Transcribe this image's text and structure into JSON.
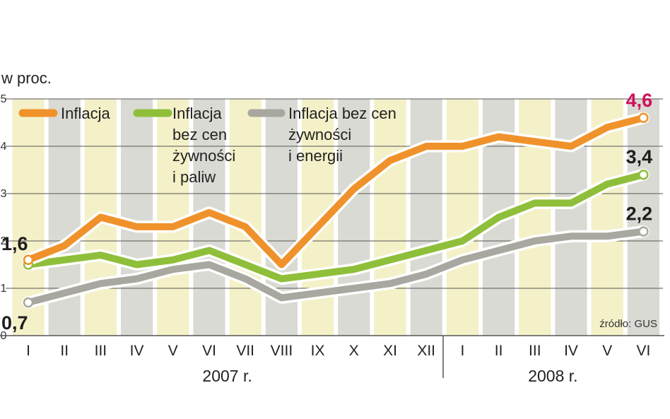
{
  "chart_data": {
    "type": "line",
    "ylabel": "w proc.",
    "ylim": [
      0,
      5
    ],
    "yticks": [
      "0",
      "1",
      "2",
      "3",
      "4",
      "5"
    ],
    "categories": [
      "I",
      "II",
      "III",
      "IV",
      "V",
      "VI",
      "VII",
      "VIII",
      "IX",
      "X",
      "XI",
      "XII",
      "I",
      "II",
      "III",
      "IV",
      "V",
      "VI"
    ],
    "year_groups": [
      {
        "label": "2007 r.",
        "start": 0,
        "end": 11
      },
      {
        "label": "2008 r.",
        "start": 12,
        "end": 17
      }
    ],
    "series": [
      {
        "name": "Inflacja",
        "color": "#f0922b",
        "values": [
          1.6,
          1.9,
          2.5,
          2.3,
          2.3,
          2.6,
          2.3,
          1.5,
          2.3,
          3.1,
          3.7,
          4.0,
          4.0,
          4.2,
          4.1,
          4.0,
          4.4,
          4.6
        ]
      },
      {
        "name": "Inflacja bez cen żywności i paliw",
        "color": "#8fbf3a",
        "values": [
          1.5,
          1.6,
          1.7,
          1.5,
          1.6,
          1.8,
          1.5,
          1.2,
          1.3,
          1.4,
          1.6,
          1.8,
          2.0,
          2.5,
          2.8,
          2.8,
          3.2,
          3.4
        ]
      },
      {
        "name": "Inflacja bez cen żywności i energii",
        "color": "#a8a8a0",
        "values": [
          0.7,
          0.9,
          1.1,
          1.2,
          1.4,
          1.5,
          1.2,
          0.8,
          0.9,
          1.0,
          1.1,
          1.3,
          1.6,
          1.8,
          2.0,
          2.1,
          2.1,
          2.2
        ]
      }
    ],
    "legend": [
      {
        "lines": [
          "Inflacja"
        ],
        "color": "#f0922b"
      },
      {
        "lines": [
          "Inflacja",
          "bez cen",
          "żywności",
          "i paliw"
        ],
        "color": "#8fbf3a"
      },
      {
        "lines": [
          "Inflacja bez cen",
          "żywności",
          "i energii"
        ],
        "color": "#a8a8a0"
      }
    ],
    "annotations": [
      {
        "text": "1,6",
        "series": 0,
        "index": 0
      },
      {
        "text": "0,7",
        "series": 2,
        "index": 0
      },
      {
        "text": "4,6",
        "series": 0,
        "index": 17,
        "color": "#d0115a"
      },
      {
        "text": "3,4",
        "series": 1,
        "index": 17
      },
      {
        "text": "2,2",
        "series": 2,
        "index": 17
      }
    ],
    "source": "źródło: GUS",
    "column_colors": [
      "#f4f0c8",
      "#dadad4"
    ]
  }
}
